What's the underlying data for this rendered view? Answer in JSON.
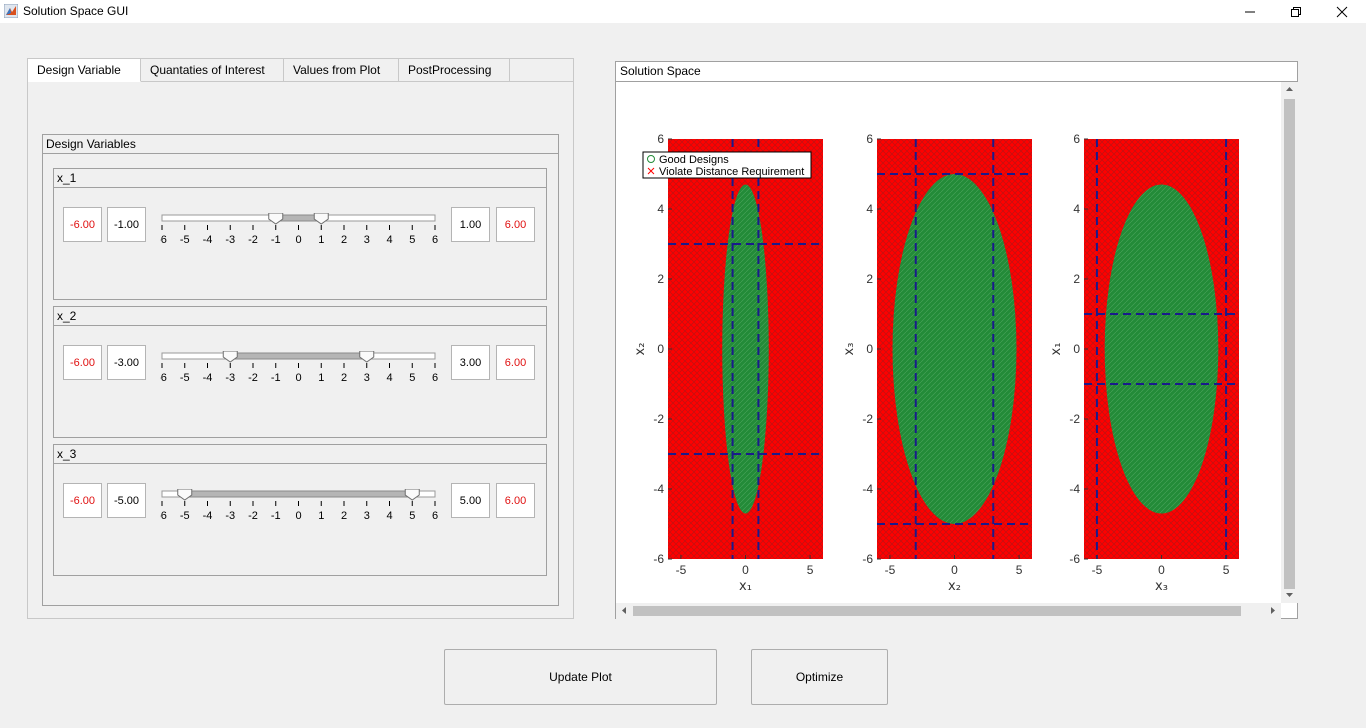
{
  "window": {
    "title": "Solution Space GUI"
  },
  "tabs": [
    {
      "label": "Design Variable",
      "active": true
    },
    {
      "label": "Quantaties of Interest",
      "active": false
    },
    {
      "label": "Values from Plot",
      "active": false
    },
    {
      "label": "PostProcessing",
      "active": false
    }
  ],
  "design_group": {
    "title": "Design Variables"
  },
  "variables": [
    {
      "name": "x_1",
      "min": "-6.00",
      "lower": "-1.00",
      "upper": "1.00",
      "max": "6.00",
      "lower_value": -1,
      "upper_value": 1
    },
    {
      "name": "x_2",
      "min": "-6.00",
      "lower": "-3.00",
      "upper": "3.00",
      "max": "6.00",
      "lower_value": -3,
      "upper_value": 3
    },
    {
      "name": "x_3",
      "min": "-6.00",
      "lower": "-5.00",
      "upper": "5.00",
      "max": "6.00",
      "lower_value": -5,
      "upper_value": 5
    }
  ],
  "slider_ticks": [
    "-6",
    "-5",
    "-4",
    "-3",
    "-2",
    "-1",
    "0",
    "1",
    "2",
    "3",
    "4",
    "5",
    "6"
  ],
  "plot_panel": {
    "title": "Solution Space"
  },
  "legend": {
    "good": "Good Designs",
    "violate": "Violate Distance Requirement"
  },
  "colors": {
    "good": "#238b38",
    "violate": "#ff0000",
    "box_line": "#1a1a8c",
    "limit_text": "#e01010"
  },
  "chart_data": [
    {
      "type": "scatter",
      "x_var": "x1",
      "y_var": "x2",
      "xlabel": "x₁",
      "ylabel": "x₂",
      "xlim": [
        -6,
        6
      ],
      "ylim": [
        -6,
        6
      ],
      "xticks": [
        "-5",
        "0",
        "5"
      ],
      "yticks": [
        "-6",
        "-4",
        "-2",
        "0",
        "2",
        "4",
        "6"
      ],
      "box_x": [
        -1,
        1
      ],
      "box_y": [
        -3,
        3
      ],
      "good_radius_x": 1.8,
      "good_radius_y": 4.7
    },
    {
      "type": "scatter",
      "x_var": "x2",
      "y_var": "x3",
      "xlabel": "x₂",
      "ylabel": "x₃",
      "xlim": [
        -6,
        6
      ],
      "ylim": [
        -6,
        6
      ],
      "xticks": [
        "-5",
        "0",
        "5"
      ],
      "yticks": [
        "-6",
        "-4",
        "-2",
        "0",
        "2",
        "4",
        "6"
      ],
      "box_x": [
        -3,
        3
      ],
      "box_y": [
        -5,
        5
      ],
      "good_radius_x": 4.8,
      "good_radius_y": 5.0
    },
    {
      "type": "scatter",
      "x_var": "x3",
      "y_var": "x1",
      "xlabel": "x₃",
      "ylabel": "x₁",
      "xlim": [
        -6,
        6
      ],
      "ylim": [
        -6,
        6
      ],
      "xticks": [
        "-5",
        "0",
        "5"
      ],
      "yticks": [
        "-6",
        "-4",
        "-2",
        "0",
        "2",
        "4",
        "6"
      ],
      "box_x": [
        -5,
        5
      ],
      "box_y": [
        -1,
        1
      ],
      "good_radius_x": 4.4,
      "good_radius_y": 4.7
    }
  ],
  "buttons": {
    "update": "Update Plot",
    "optimize": "Optimize"
  }
}
